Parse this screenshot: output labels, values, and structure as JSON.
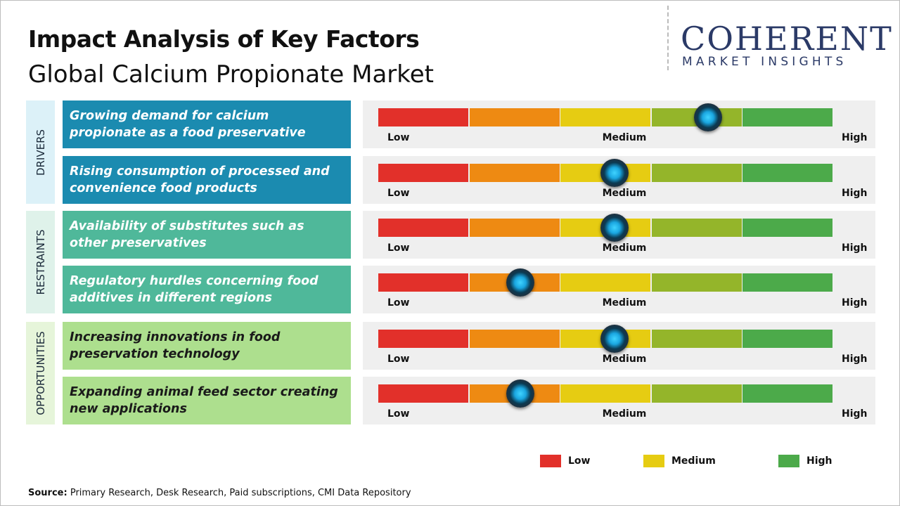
{
  "header": {
    "title": "Impact Analysis of Key Factors",
    "subtitle": "Global Calcium Propionate Market"
  },
  "logo": {
    "name": "COHERENT",
    "tagline": "MARKET INSIGHTS"
  },
  "scale_labels": [
    "Low",
    "Medium",
    "High"
  ],
  "sections": [
    {
      "label": "DRIVERS",
      "factors": [
        "Growing demand for calcium propionate as a food preservative",
        "Rising consumption of processed and convenience food products"
      ]
    },
    {
      "label": "RESTRAINTS",
      "factors": [
        "Availability of substitutes such as other preservatives",
        "Regulatory hurdles concerning food additives in different regions"
      ]
    },
    {
      "label": "OPPORTUNITIES",
      "factors": [
        "Increasing innovations in food preservation technology",
        "Expanding animal feed sector creating new applications"
      ]
    }
  ],
  "legend": [
    "Low",
    "Medium",
    "High"
  ],
  "source": {
    "label": "Source:",
    "text": "Primary Research, Desk Research, Paid subscriptions, CMI Data Repository"
  }
}
